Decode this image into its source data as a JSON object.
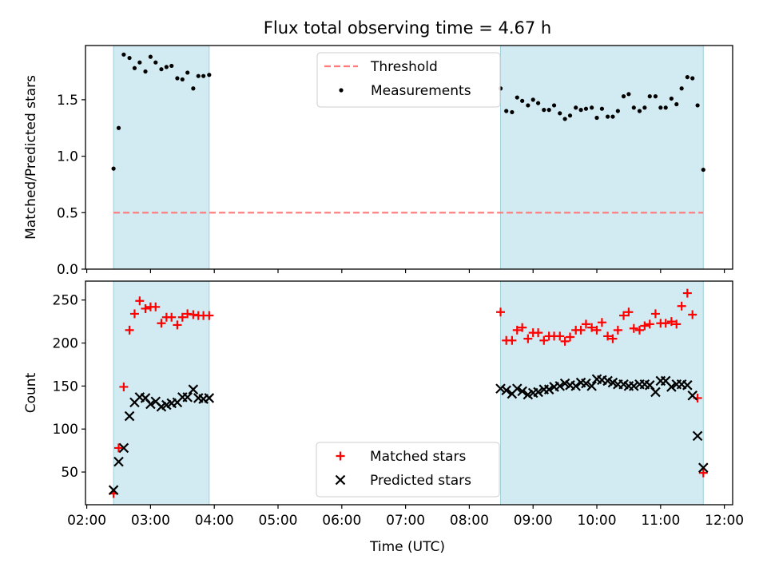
{
  "chart_data": {
    "title": "Flux total observing time = 4.67 h",
    "x_tick_labels": [
      "02:00",
      "03:00",
      "04:00",
      "05:00",
      "06:00",
      "07:00",
      "08:00",
      "09:00",
      "10:00",
      "11:00",
      "12:00"
    ],
    "x_ticks_hours": [
      2,
      3,
      4,
      5,
      6,
      7,
      8,
      9,
      10,
      11,
      12
    ],
    "xlabel": "Time (UTC)",
    "xlim_hours": [
      1.98,
      12.13
    ],
    "shaded_intervals_hours": [
      [
        2.42,
        3.92
      ],
      [
        8.49,
        11.67
      ]
    ],
    "shade_color": "#add8e6",
    "panels": [
      {
        "type": "scatter",
        "ylabel": "Matched/Predicted stars",
        "ylim": [
          0,
          1.98
        ],
        "yticks": [
          0.0,
          0.5,
          1.0,
          1.5
        ],
        "ytick_labels": [
          "0.0",
          "0.5",
          "1.0",
          "1.5"
        ],
        "legend_position": "upper center",
        "threshold": {
          "name": "Threshold",
          "value": 0.5,
          "x_range_hours": [
            2.42,
            11.67
          ],
          "color": "#ff7a7a",
          "style": "dashed"
        },
        "series": [
          {
            "name": "Measurements",
            "marker": "dot",
            "color": "#000000",
            "x_hours": [
              2.42,
              2.5,
              2.58,
              2.67,
              2.75,
              2.83,
              2.92,
              3.0,
              3.08,
              3.17,
              3.25,
              3.33,
              3.42,
              3.5,
              3.58,
              3.67,
              3.75,
              3.83,
              3.92,
              8.49,
              8.58,
              8.67,
              8.75,
              8.83,
              8.92,
              9.0,
              9.08,
              9.17,
              9.25,
              9.33,
              9.42,
              9.5,
              9.58,
              9.67,
              9.75,
              9.83,
              9.92,
              10.0,
              10.08,
              10.17,
              10.25,
              10.33,
              10.42,
              10.5,
              10.58,
              10.67,
              10.75,
              10.83,
              10.92,
              11.0,
              11.08,
              11.17,
              11.25,
              11.33,
              11.42,
              11.5,
              11.58,
              11.67
            ],
            "y": [
              0.89,
              1.25,
              1.9,
              1.87,
              1.78,
              1.83,
              1.75,
              1.88,
              1.83,
              1.77,
              1.79,
              1.8,
              1.69,
              1.68,
              1.74,
              1.6,
              1.71,
              1.71,
              1.72,
              1.6,
              1.4,
              1.39,
              1.52,
              1.49,
              1.45,
              1.5,
              1.47,
              1.41,
              1.41,
              1.45,
              1.38,
              1.33,
              1.36,
              1.43,
              1.41,
              1.42,
              1.43,
              1.34,
              1.42,
              1.35,
              1.35,
              1.4,
              1.53,
              1.55,
              1.43,
              1.4,
              1.43,
              1.53,
              1.53,
              1.43,
              1.43,
              1.51,
              1.46,
              1.6,
              1.7,
              1.69,
              1.45,
              0.88
            ]
          }
        ]
      },
      {
        "type": "scatter",
        "ylabel": "Count",
        "ylim": [
          12,
          272
        ],
        "yticks": [
          50,
          100,
          150,
          200,
          250
        ],
        "ytick_labels": [
          "50",
          "100",
          "150",
          "200",
          "250"
        ],
        "legend_position": "lower center",
        "series": [
          {
            "name": "Matched stars",
            "marker": "plus",
            "color": "#ff0000",
            "x_hours": [
              2.42,
              2.5,
              2.58,
              2.67,
              2.75,
              2.83,
              2.92,
              3.0,
              3.08,
              3.17,
              3.25,
              3.33,
              3.42,
              3.5,
              3.58,
              3.67,
              3.75,
              3.83,
              3.92,
              8.49,
              8.58,
              8.67,
              8.75,
              8.83,
              8.92,
              9.0,
              9.08,
              9.17,
              9.25,
              9.33,
              9.42,
              9.5,
              9.58,
              9.67,
              9.75,
              9.83,
              9.92,
              10.0,
              10.08,
              10.17,
              10.25,
              10.33,
              10.42,
              10.5,
              10.58,
              10.67,
              10.75,
              10.83,
              10.92,
              11.0,
              11.08,
              11.17,
              11.25,
              11.33,
              11.42,
              11.5,
              11.58,
              11.67
            ],
            "y": [
              25,
              78,
              149,
              215,
              234,
              249,
              240,
              242,
              242,
              223,
              230,
              230,
              221,
              230,
              234,
              233,
              232,
              232,
              232,
              236,
              203,
              203,
              215,
              218,
              205,
              212,
              212,
              203,
              208,
              208,
              208,
              202,
              207,
              215,
              215,
              222,
              218,
              215,
              224,
              208,
              205,
              215,
              232,
              236,
              217,
              215,
              220,
              222,
              234,
              223,
              223,
              225,
              222,
              243,
              258,
              233,
              136,
              49
            ]
          },
          {
            "name": "Predicted stars",
            "marker": "x",
            "color": "#000000",
            "x_hours": [
              2.42,
              2.5,
              2.58,
              2.67,
              2.75,
              2.83,
              2.92,
              3.0,
              3.08,
              3.17,
              3.25,
              3.33,
              3.42,
              3.5,
              3.58,
              3.67,
              3.75,
              3.83,
              3.92,
              8.49,
              8.58,
              8.67,
              8.75,
              8.83,
              8.92,
              9.0,
              9.08,
              9.17,
              9.25,
              9.33,
              9.42,
              9.5,
              9.58,
              9.67,
              9.75,
              9.83,
              9.92,
              10.0,
              10.08,
              10.17,
              10.25,
              10.33,
              10.42,
              10.5,
              10.58,
              10.67,
              10.75,
              10.83,
              10.92,
              11.0,
              11.08,
              11.17,
              11.25,
              11.33,
              11.42,
              11.5,
              11.58,
              11.67
            ],
            "y": [
              29,
              62,
              78,
              115,
              131,
              137,
              136,
              129,
              132,
              126,
              128,
              130,
              131,
              137,
              137,
              146,
              136,
              135,
              136,
              147,
              145,
              141,
              147,
              144,
              140,
              142,
              143,
              146,
              146,
              149,
              150,
              153,
              151,
              150,
              154,
              153,
              150,
              158,
              157,
              156,
              154,
              152,
              152,
              150,
              150,
              152,
              152,
              151,
              143,
              156,
              156,
              149,
              152,
              152,
              151,
              139,
              92,
              55
            ]
          }
        ]
      }
    ]
  }
}
